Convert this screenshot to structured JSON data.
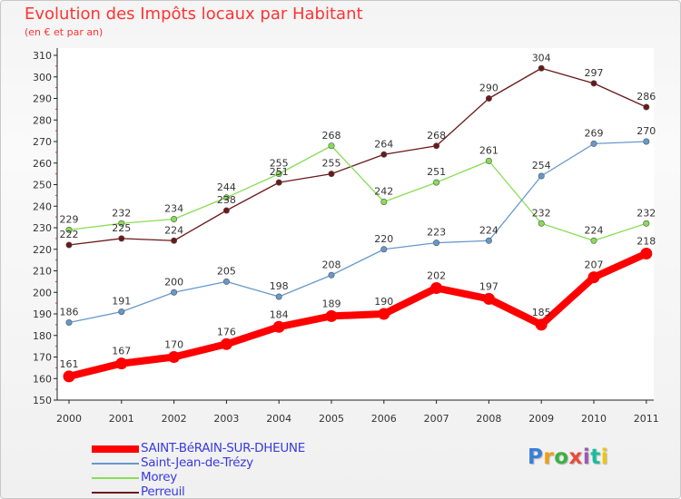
{
  "title": "Evolution des Impôts locaux par Habitant",
  "subtitle": "(en € et par an)",
  "logo": {
    "text": "Proxiti",
    "colors": [
      "#3a7fd9",
      "#f39c12",
      "#3cb043",
      "#e74c3c",
      "#9b59b6",
      "#1abc9c",
      "#f1c40f"
    ]
  },
  "chart_data": {
    "type": "line",
    "title": "Evolution des Impôts locaux par Habitant",
    "subtitle": "(en € et par an)",
    "x": [
      "2000",
      "2001",
      "2002",
      "2003",
      "2004",
      "2005",
      "2006",
      "2007",
      "2008",
      "2009",
      "2010",
      "2011"
    ],
    "ylim": [
      150,
      310
    ],
    "yticks": [
      150,
      160,
      170,
      180,
      190,
      200,
      210,
      220,
      230,
      240,
      250,
      260,
      270,
      280,
      290,
      300,
      310
    ],
    "grid": false,
    "legend_position": "bottom-left",
    "series": [
      {
        "name": "SAINT-BéRAIN-SUR-DHEUNE",
        "color": "#ff0000",
        "values": [
          161,
          167,
          170,
          176,
          184,
          189,
          190,
          202,
          197,
          185,
          207,
          218
        ]
      },
      {
        "name": "Saint-Jean-de-Trézy",
        "color": "#6699cc",
        "values": [
          186,
          191,
          200,
          205,
          198,
          208,
          220,
          223,
          224,
          254,
          269,
          270
        ]
      },
      {
        "name": "Morey",
        "color": "#88dd55",
        "values": [
          229,
          232,
          234,
          244,
          255,
          268,
          242,
          251,
          261,
          232,
          224,
          232
        ]
      },
      {
        "name": "Perreuil",
        "color": "#6b1818",
        "values": [
          222,
          225,
          224,
          238,
          251,
          255,
          264,
          268,
          290,
          304,
          297,
          286
        ]
      }
    ]
  }
}
